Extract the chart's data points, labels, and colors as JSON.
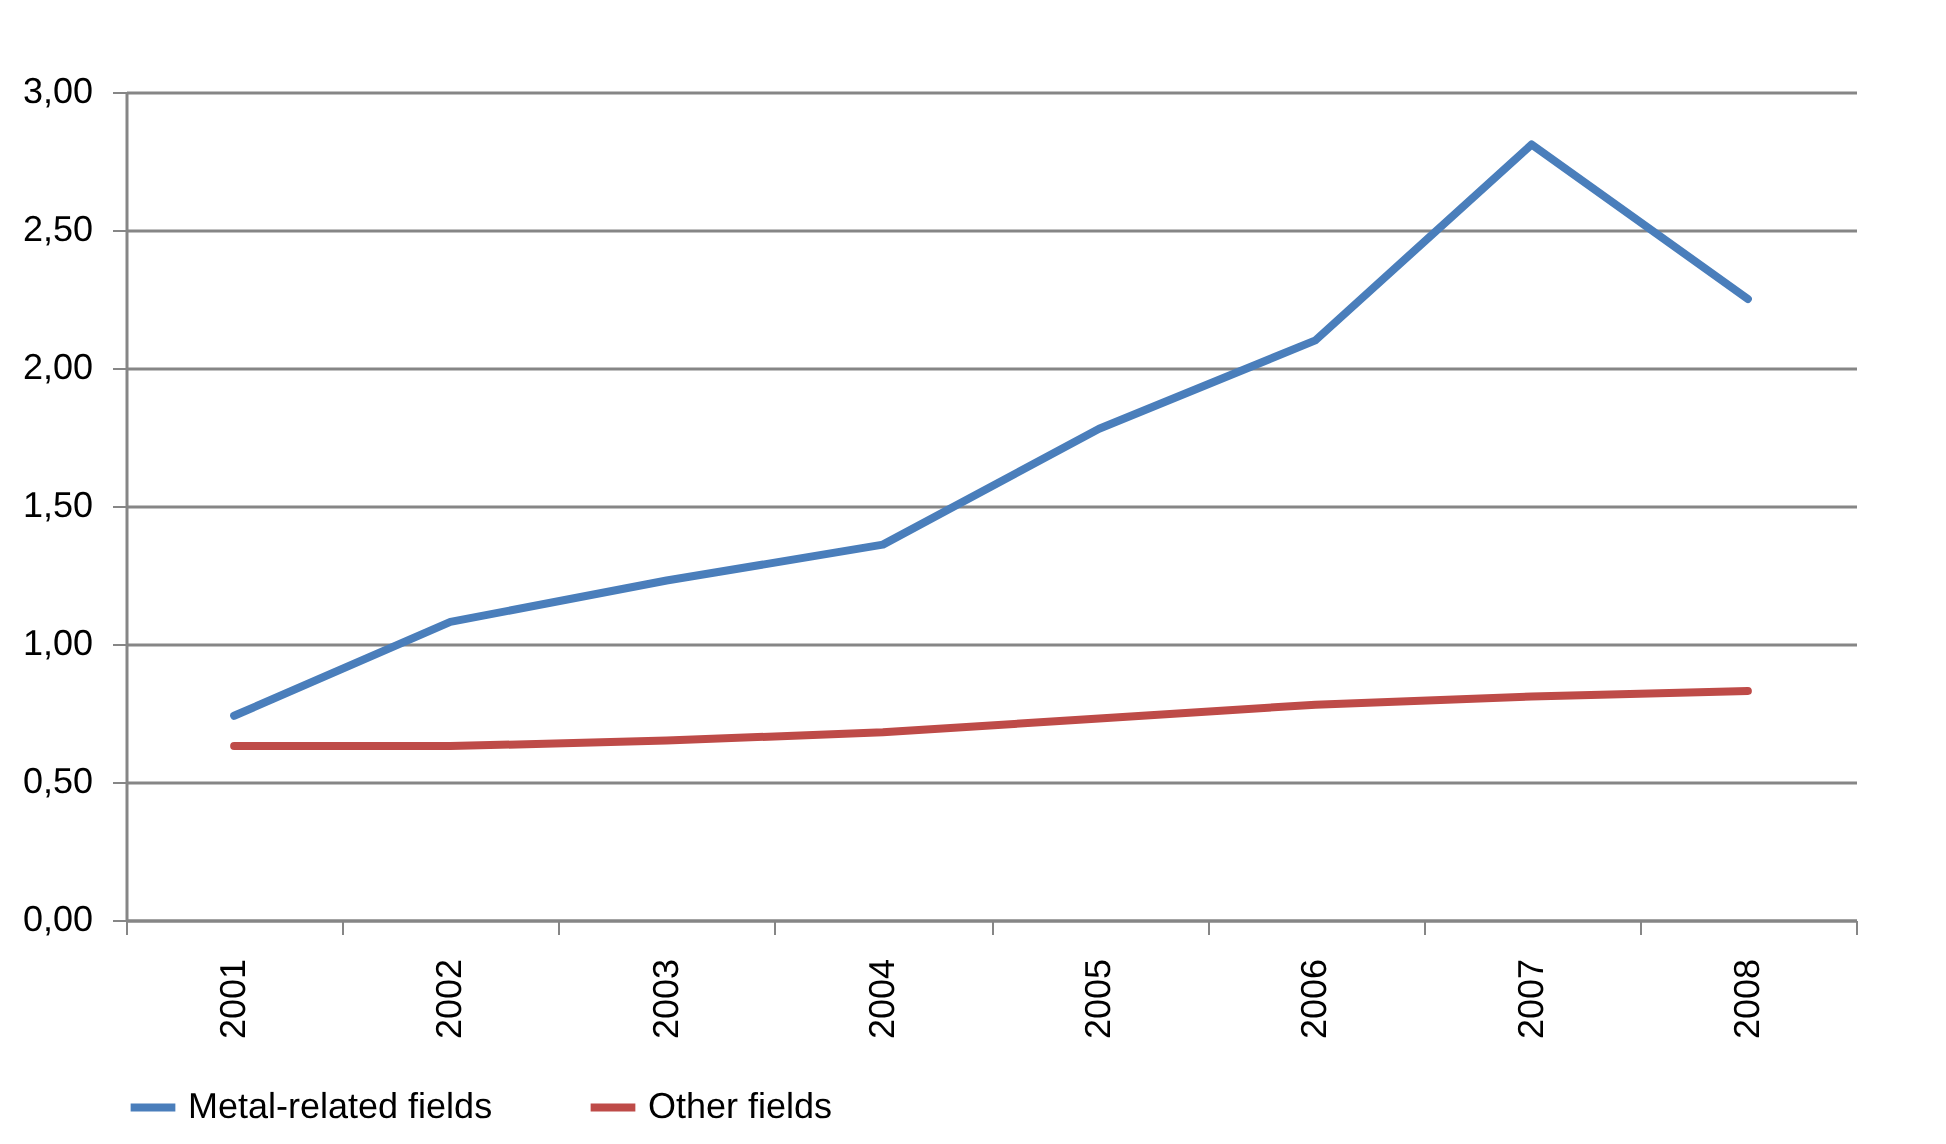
{
  "chart_data": {
    "type": "line",
    "categories": [
      "2001",
      "2002",
      "2003",
      "2004",
      "2005",
      "2006",
      "2007",
      "2008"
    ],
    "series": [
      {
        "name": "Metal-related fields",
        "color": "#4a7ebb",
        "values": [
          0.74,
          1.08,
          1.23,
          1.36,
          1.78,
          2.1,
          2.81,
          2.25
        ]
      },
      {
        "name": "Other fields",
        "color": "#be4b48",
        "values": [
          0.63,
          0.63,
          0.65,
          0.68,
          0.73,
          0.78,
          0.81,
          0.83
        ]
      }
    ],
    "ylim": [
      0,
      3
    ],
    "yticks": [
      {
        "value": 0,
        "label": "0,00"
      },
      {
        "value": 0.5,
        "label": "0,50"
      },
      {
        "value": 1,
        "label": "1,00"
      },
      {
        "value": 1.5,
        "label": "1,50"
      },
      {
        "value": 2,
        "label": "2,00"
      },
      {
        "value": 2.5,
        "label": "2,50"
      },
      {
        "value": 3,
        "label": "3,00"
      }
    ],
    "grid": "y",
    "legend": "bottom",
    "marker": "none",
    "line_style": "solid"
  }
}
